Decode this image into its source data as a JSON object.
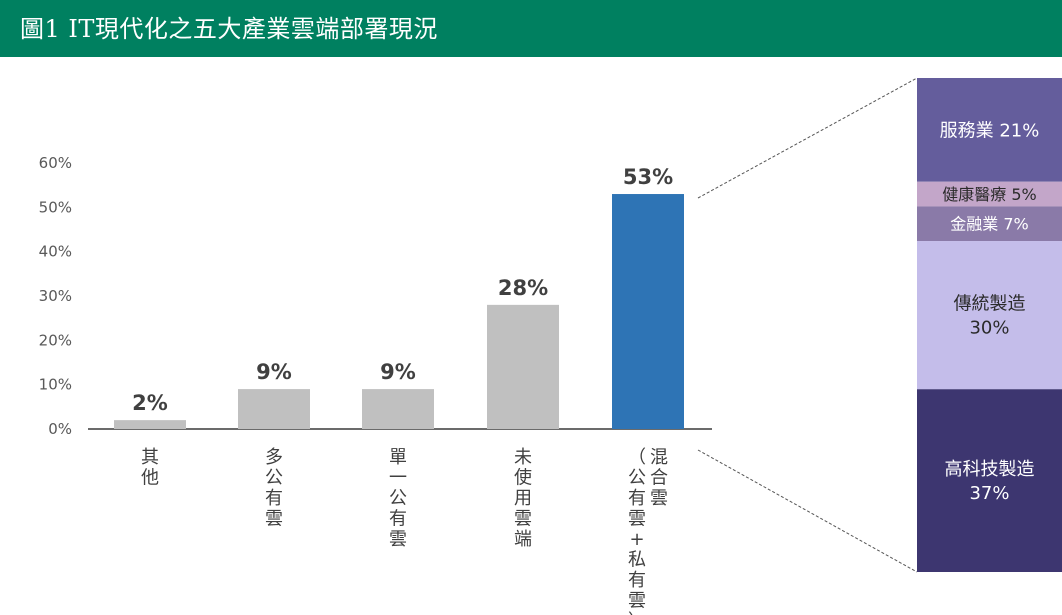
{
  "header": {
    "title": "圖1 IT現代化之五大產業雲端部署現況",
    "background": "#008060"
  },
  "chart_data": [
    {
      "type": "bar",
      "categories": [
        "其他",
        "多公有雲",
        "單一公有雲",
        "未使用雲端",
        "混合雲（公有雲+私有雲）"
      ],
      "category_lines": [
        [
          "其他"
        ],
        [
          "多公有雲"
        ],
        [
          "單一公有雲"
        ],
        [
          "未使用雲端"
        ],
        [
          "混合雲",
          "（公有雲+私有雲）"
        ]
      ],
      "values": [
        2,
        9,
        9,
        28,
        53
      ],
      "value_labels": [
        "2%",
        "9%",
        "9%",
        "28%",
        "53%"
      ],
      "bar_colors": [
        "#c0c0c0",
        "#c0c0c0",
        "#c0c0c0",
        "#c0c0c0",
        "#2e74b5"
      ],
      "yticks": [
        0,
        10,
        20,
        30,
        40,
        50,
        60
      ],
      "ytick_labels": [
        "0%",
        "10%",
        "20%",
        "30%",
        "40%",
        "50%",
        "60%"
      ],
      "ylim": [
        0,
        60
      ],
      "grid": false,
      "legend": "none"
    },
    {
      "type": "bar",
      "stacked": true,
      "segments": [
        {
          "lines": [
            "服務業 21%"
          ],
          "value": 21,
          "color": "#645d9c",
          "text_color": "#ffffff"
        },
        {
          "lines": [
            "健康醫療 5%"
          ],
          "value": 5,
          "color": "#c3a6c9",
          "text_color": "#2b2b2b"
        },
        {
          "lines": [
            "金融業 7%"
          ],
          "value": 7,
          "color": "#8a7aa8",
          "text_color": "#ffffff"
        },
        {
          "lines": [
            "傳統製造",
            "30%"
          ],
          "value": 30,
          "color": "#c4bdea",
          "text_color": "#2b2b2b"
        },
        {
          "lines": [
            "高科技製造",
            "37%"
          ],
          "value": 37,
          "color": "#3d3670",
          "text_color": "#ffffff"
        }
      ]
    }
  ]
}
